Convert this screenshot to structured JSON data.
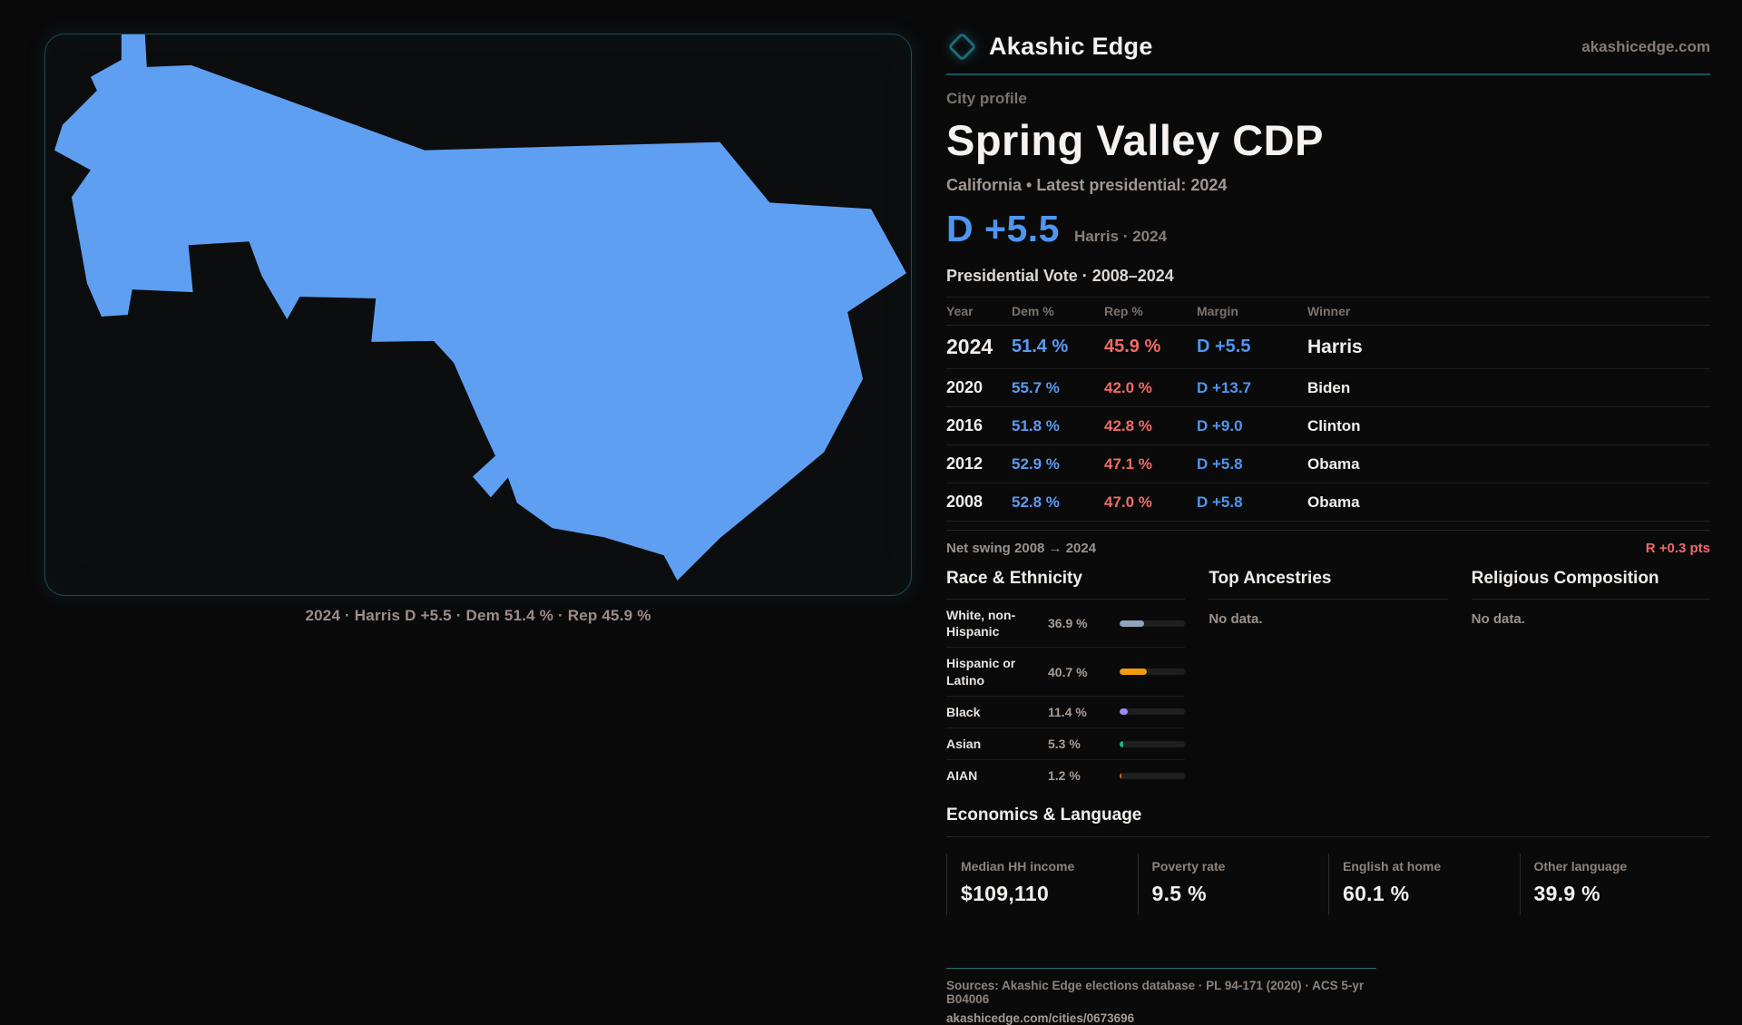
{
  "brand": {
    "name": "Akashic Edge",
    "domain": "akashicedge.com"
  },
  "profile": {
    "eyebrow": "City profile",
    "title": "Spring Valley CDP",
    "subtitle": "California • Latest presidential: 2024"
  },
  "headline": {
    "margin": "D +5.5",
    "context": "Harris · 2024"
  },
  "vote_table": {
    "title": "Presidential Vote · 2008–2024",
    "headers": {
      "year": "Year",
      "dem": "Dem %",
      "rep": "Rep %",
      "margin": "Margin",
      "winner": "Winner"
    },
    "rows": [
      {
        "year": "2024",
        "dem": "51.4 %",
        "rep": "45.9 %",
        "margin": "D +5.5",
        "winner": "Harris"
      },
      {
        "year": "2020",
        "dem": "55.7 %",
        "rep": "42.0 %",
        "margin": "D +13.7",
        "winner": "Biden"
      },
      {
        "year": "2016",
        "dem": "51.8 %",
        "rep": "42.8 %",
        "margin": "D +9.0",
        "winner": "Clinton"
      },
      {
        "year": "2012",
        "dem": "52.9 %",
        "rep": "47.1 %",
        "margin": "D +5.8",
        "winner": "Obama"
      },
      {
        "year": "2008",
        "dem": "52.8 %",
        "rep": "47.0 %",
        "margin": "D +5.8",
        "winner": "Obama"
      }
    ]
  },
  "net_swing": {
    "label": "Net swing 2008 → 2024",
    "value": "R +0.3 pts"
  },
  "race": {
    "heading": "Race & Ethnicity",
    "rows": [
      {
        "label": "White, non-Hispanic",
        "value": "36.9 %",
        "pct": 36.9,
        "color": "#8fa3c0"
      },
      {
        "label": "Hispanic or Latino",
        "value": "40.7 %",
        "pct": 40.7,
        "color": "#ee9d0d"
      },
      {
        "label": "Black",
        "value": "11.4 %",
        "pct": 11.4,
        "color": "#9f87f5"
      },
      {
        "label": "Asian",
        "value": "5.3 %",
        "pct": 5.3,
        "color": "#1db584"
      },
      {
        "label": "AIAN",
        "value": "1.2 %",
        "pct": 1.2,
        "color": "#d96b1e"
      }
    ]
  },
  "ancestries": {
    "heading": "Top Ancestries",
    "empty": "No data."
  },
  "religion": {
    "heading": "Religious Composition",
    "empty": "No data."
  },
  "economics": {
    "heading": "Economics & Language",
    "stats": [
      {
        "label": "Median HH income",
        "value": "$109,110"
      },
      {
        "label": "Poverty rate",
        "value": "9.5 %"
      },
      {
        "label": "English at home",
        "value": "60.1 %"
      },
      {
        "label": "Other language",
        "value": "39.9 %"
      }
    ]
  },
  "footer": {
    "sources": "Sources: Akashic Edge elections database · PL 94-171 (2020) · ACS 5-yr B04006",
    "link": "akashicedge.com/cities/0673696"
  },
  "map": {
    "caption": "2024 · Harris D +5.5 · Dem 51.4 % · Rep 45.9 %"
  },
  "colors": {
    "accent_dem": "#4f96f0",
    "accent_dem_light": "#5b9bf5",
    "accent_rep": "#ee6c64",
    "accent_swing": "#f0696b",
    "teal_rule": "#19535e",
    "teal_rule_bright": "#2a6f78",
    "map_fill": "#5f9ff2",
    "panel_border": "#1d4e58"
  }
}
